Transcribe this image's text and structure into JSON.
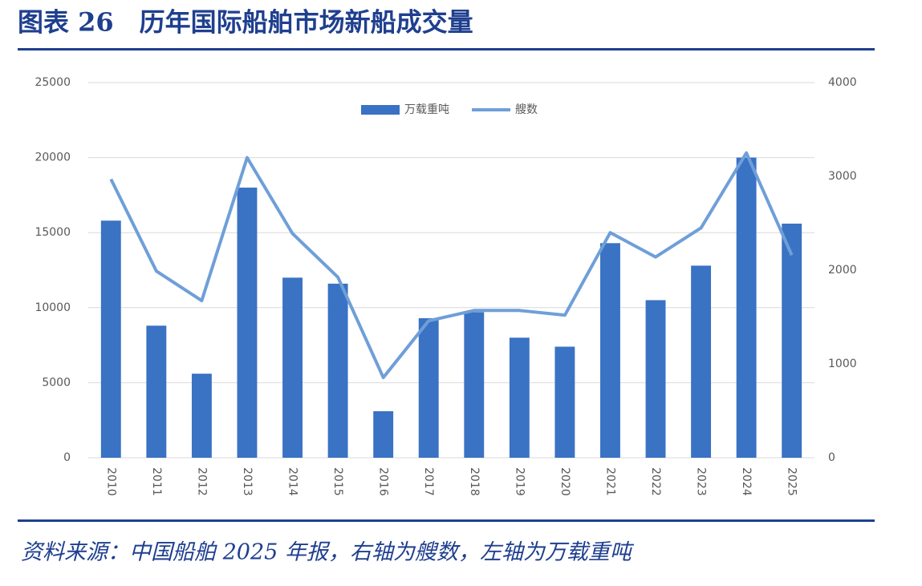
{
  "chart_data": {
    "type": "bar_line",
    "title": "图表 26　历年国际船舶市场新船成交量",
    "source": "资料来源：中国船舶 2025 年报，右轴为艘数，左轴为万载重吨",
    "categories": [
      "2010",
      "2011",
      "2012",
      "2013",
      "2014",
      "2015",
      "2016",
      "2017",
      "2018",
      "2019",
      "2020",
      "2021",
      "2022",
      "2023",
      "2024",
      "2025"
    ],
    "series": [
      {
        "name": "万载重吨",
        "type": "bar",
        "color": "#3a72c4",
        "values": [
          15800,
          8800,
          5600,
          18000,
          12000,
          11600,
          3100,
          9300,
          9700,
          8000,
          7400,
          14300,
          10500,
          12800,
          20000,
          15600
        ]
      },
      {
        "name": "艘数",
        "type": "line",
        "axis": "y2",
        "color": "#6f9fd8",
        "values": [
          2970,
          1990,
          1675,
          3200,
          2390,
          1925,
          855,
          1460,
          1570,
          1570,
          1520,
          2400,
          2140,
          2450,
          3250,
          2160
        ]
      }
    ],
    "ylim": [
      0,
      25000
    ],
    "yticks": [
      0,
      5000,
      10000,
      15000,
      20000,
      25000
    ],
    "y2lim": [
      0,
      4000
    ],
    "y2ticks": [
      0,
      1000,
      2000,
      3000,
      4000
    ],
    "grid": true,
    "legend": "top"
  }
}
